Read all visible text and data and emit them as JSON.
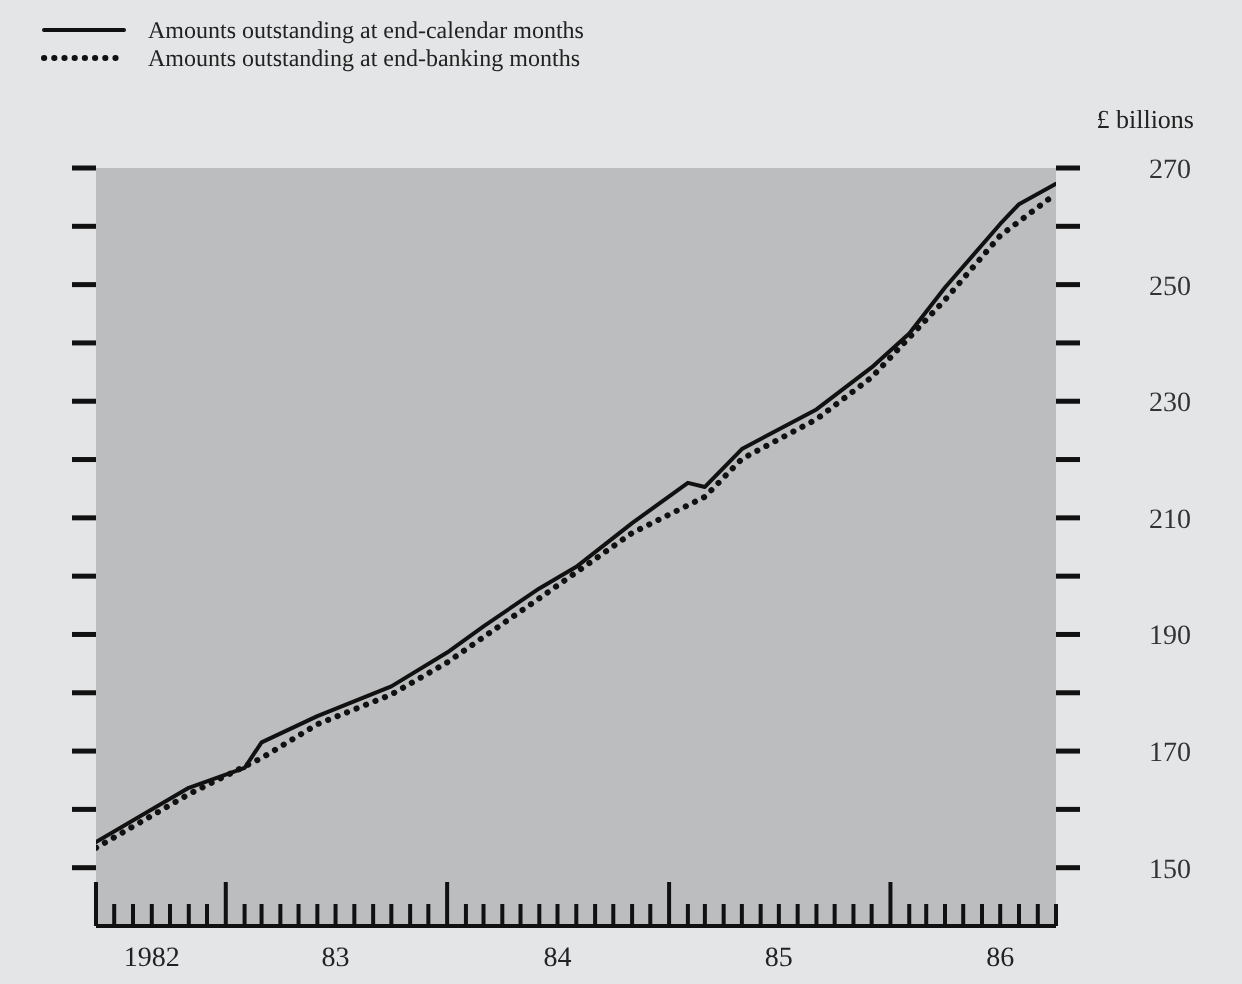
{
  "chart_data": {
    "type": "line",
    "ylabel": "£ billions",
    "legend": "top left",
    "xlim": [
      "1982-06",
      "1986-10"
    ],
    "ylim": [
      140,
      270
    ],
    "xticks": [
      {
        "value": "1982-06",
        "label": null
      },
      {
        "value": "1982-07",
        "label": null
      },
      {
        "value": "1982-08",
        "label": null
      },
      {
        "value": "1982-09",
        "label": "1982"
      },
      {
        "value": "1982-10",
        "label": null
      },
      {
        "value": "1982-11",
        "label": null
      },
      {
        "value": "1982-12",
        "label": null
      },
      {
        "value": "1983-01",
        "label": null
      },
      {
        "value": "1983-02",
        "label": null
      },
      {
        "value": "1983-03",
        "label": null
      },
      {
        "value": "1983-04",
        "label": null
      },
      {
        "value": "1983-05",
        "label": null
      },
      {
        "value": "1983-06",
        "label": null
      },
      {
        "value": "1983-07",
        "label": "83"
      },
      {
        "value": "1983-08",
        "label": null
      },
      {
        "value": "1983-09",
        "label": null
      },
      {
        "value": "1983-10",
        "label": null
      },
      {
        "value": "1983-11",
        "label": null
      },
      {
        "value": "1983-12",
        "label": null
      },
      {
        "value": "1984-01",
        "label": null
      },
      {
        "value": "1984-02",
        "label": null
      },
      {
        "value": "1984-03",
        "label": null
      },
      {
        "value": "1984-04",
        "label": null
      },
      {
        "value": "1984-05",
        "label": null
      },
      {
        "value": "1984-06",
        "label": null
      },
      {
        "value": "1984-07",
        "label": "84"
      },
      {
        "value": "1984-08",
        "label": null
      },
      {
        "value": "1984-09",
        "label": null
      },
      {
        "value": "1984-10",
        "label": null
      },
      {
        "value": "1984-11",
        "label": null
      },
      {
        "value": "1984-12",
        "label": null
      },
      {
        "value": "1985-01",
        "label": null
      },
      {
        "value": "1985-02",
        "label": null
      },
      {
        "value": "1985-03",
        "label": null
      },
      {
        "value": "1985-04",
        "label": null
      },
      {
        "value": "1985-05",
        "label": null
      },
      {
        "value": "1985-06",
        "label": null
      },
      {
        "value": "1985-07",
        "label": "85"
      },
      {
        "value": "1985-08",
        "label": null
      },
      {
        "value": "1985-09",
        "label": null
      },
      {
        "value": "1985-10",
        "label": null
      },
      {
        "value": "1985-11",
        "label": null
      },
      {
        "value": "1985-12",
        "label": null
      },
      {
        "value": "1986-01",
        "label": null
      },
      {
        "value": "1986-02",
        "label": null
      },
      {
        "value": "1986-03",
        "label": null
      },
      {
        "value": "1986-04",
        "label": null
      },
      {
        "value": "1986-05",
        "label": null
      },
      {
        "value": "1986-06",
        "label": null
      },
      {
        "value": "1986-07",
        "label": "86"
      },
      {
        "value": "1986-08",
        "label": null
      },
      {
        "value": "1986-09",
        "label": null
      },
      {
        "value": "1986-10",
        "label": null
      }
    ],
    "yticks": [
      150,
      {
        "value": 160,
        "label": null
      },
      170,
      {
        "value": 180,
        "label": null
      },
      190,
      {
        "value": 200,
        "label": null
      },
      210,
      {
        "value": 220,
        "label": null
      },
      230,
      {
        "value": 240,
        "label": null
      },
      250,
      {
        "value": 260,
        "label": null
      },
      270
    ],
    "series": [
      {
        "name": "Amounts outstanding at end-calendar months",
        "color": "#111111",
        "line_style": "solid",
        "x": [
          "1982-06",
          "1982-11",
          "1983-02",
          "1983-03",
          "1983-06",
          "1983-10",
          "1984-01",
          "1984-03",
          "1984-06",
          "1984-08",
          "1984-11",
          "1985-02",
          "1985-03",
          "1985-05",
          "1985-09",
          "1985-12",
          "1986-02",
          "1986-04",
          "1986-07",
          "1986-08",
          "1986-10"
        ],
        "values": [
          154.4,
          163.7,
          167.1,
          171.5,
          176,
          181.1,
          186.9,
          191.4,
          197.9,
          201.6,
          209.1,
          216,
          215.3,
          221.8,
          228.6,
          235.8,
          241.6,
          249.5,
          260.4,
          263.8,
          267.3
        ]
      },
      {
        "name": "Amounts outstanding at end-banking months",
        "color": "#111111",
        "line_style": "dotted",
        "x": [
          "1982-06",
          "1982-11",
          "1983-03",
          "1983-06",
          "1983-10",
          "1984-01",
          "1984-06",
          "1984-11",
          "1985-03",
          "1985-05",
          "1985-09",
          "1985-12",
          "1986-04",
          "1986-07",
          "1986-10"
        ],
        "values": [
          153.4,
          162.6,
          168.8,
          174.6,
          179.7,
          185.2,
          196.2,
          207.4,
          213.6,
          220.1,
          226.9,
          234.1,
          247.4,
          258.4,
          265.6
        ]
      }
    ]
  }
}
